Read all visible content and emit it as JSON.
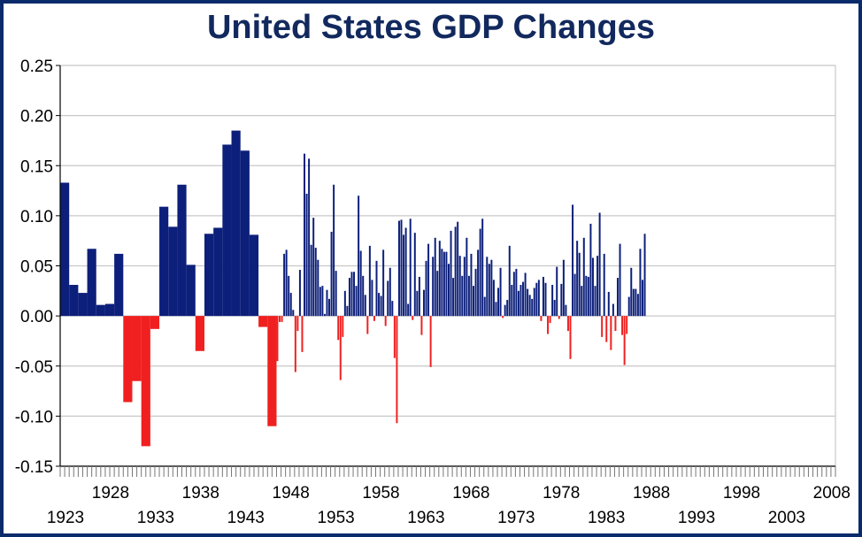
{
  "title": "United States GDP Changes",
  "chart_data": {
    "type": "bar",
    "title": "United States GDP Changes",
    "ylim": [
      -0.15,
      0.25
    ],
    "yticks": [
      "0.25",
      "0.20",
      "0.15",
      "0.10",
      "0.05",
      "0.00",
      "-0.05",
      "-0.10",
      "-0.15"
    ],
    "xticks_top": [
      "1928",
      "1938",
      "1948",
      "1958",
      "1968",
      "1978",
      "1988",
      "1998",
      "2008"
    ],
    "xticks_bottom": [
      "1923",
      "1933",
      "1943",
      "1953",
      "1963",
      "1973",
      "1983",
      "1993",
      "2003"
    ],
    "grid": "horizontal",
    "colors": {
      "positive": "#0c1f7a",
      "negative": "#f02020",
      "grid": "#c8c8c8",
      "frame": "#0b2a6b",
      "title": "#12295e"
    },
    "annual": {
      "x": [
        1923,
        1924,
        1925,
        1926,
        1927,
        1928,
        1929,
        1930,
        1931,
        1932,
        1933,
        1934,
        1935,
        1936,
        1937,
        1938,
        1939,
        1940,
        1941,
        1942,
        1943,
        1944,
        1945,
        1946
      ],
      "values": [
        0.133,
        0.031,
        0.023,
        0.067,
        0.011,
        0.012,
        0.062,
        -0.086,
        -0.065,
        -0.13,
        -0.013,
        0.109,
        0.089,
        0.131,
        0.051,
        -0.035,
        0.082,
        0.088,
        0.171,
        0.185,
        0.165,
        0.081,
        -0.011,
        -0.11
      ]
    },
    "quarterly": {
      "start": 1947.0,
      "step": 0.25,
      "values": [
        -0.045,
        -0.006,
        -0.006,
        0.062,
        0.066,
        0.04,
        0.023,
        0.006,
        -0.056,
        -0.015,
        0.046,
        -0.036,
        0.162,
        0.122,
        0.157,
        0.071,
        0.098,
        0.068,
        0.056,
        0.029,
        0.03,
        0.002,
        0.026,
        0.017,
        0.084,
        0.131,
        0.045,
        -0.024,
        -0.064,
        -0.021,
        0.025,
        0.01,
        0.038,
        0.044,
        0.044,
        0.03,
        0.12,
        0.065,
        0.04,
        0.021,
        -0.018,
        0.07,
        0.036,
        -0.005,
        0.055,
        0.023,
        0.02,
        0.066,
        -0.01,
        0.035,
        0.048,
        0.015,
        -0.042,
        -0.107,
        0.095,
        0.096,
        0.081,
        0.088,
        0.012,
        0.097,
        -0.004,
        0.083,
        0.025,
        0.039,
        -0.019,
        0.026,
        0.055,
        0.072,
        -0.051,
        0.059,
        0.078,
        0.045,
        0.075,
        0.067,
        0.064,
        0.064,
        0.052,
        0.085,
        0.038,
        0.089,
        0.094,
        0.06,
        0.04,
        0.059,
        0.078,
        0.04,
        0.062,
        0.03,
        0.047,
        0.066,
        0.087,
        0.097,
        0.019,
        0.059,
        0.052,
        0.056,
        0.036,
        0.014,
        0.028,
        0.048,
        -0.002,
        0.011,
        0.016,
        0.07,
        0.031,
        0.044,
        0.047,
        0.025,
        0.031,
        0.034,
        0.043,
        0.027,
        0.021,
        0.017,
        0.028,
        0.033,
        0.036,
        -0.005,
        0.039,
        0.033,
        -0.018,
        -0.007,
        0.031,
        0.016,
        0.049,
        -0.003,
        0.032,
        0.056,
        0.011,
        -0.015,
        -0.043,
        0.111,
        0.042,
        0.075,
        0.063,
        0.03,
        0.078,
        0.04,
        0.039,
        0.092,
        0.058,
        0.03,
        0.06,
        0.103,
        -0.021,
        0.062,
        -0.026,
        0.024,
        -0.034,
        0.012,
        -0.015,
        0.038,
        0.072,
        -0.019,
        -0.049,
        -0.018,
        0.019,
        0.048,
        0.027,
        0.027,
        0.022,
        0.067,
        0.036,
        0.082
      ]
    }
  }
}
